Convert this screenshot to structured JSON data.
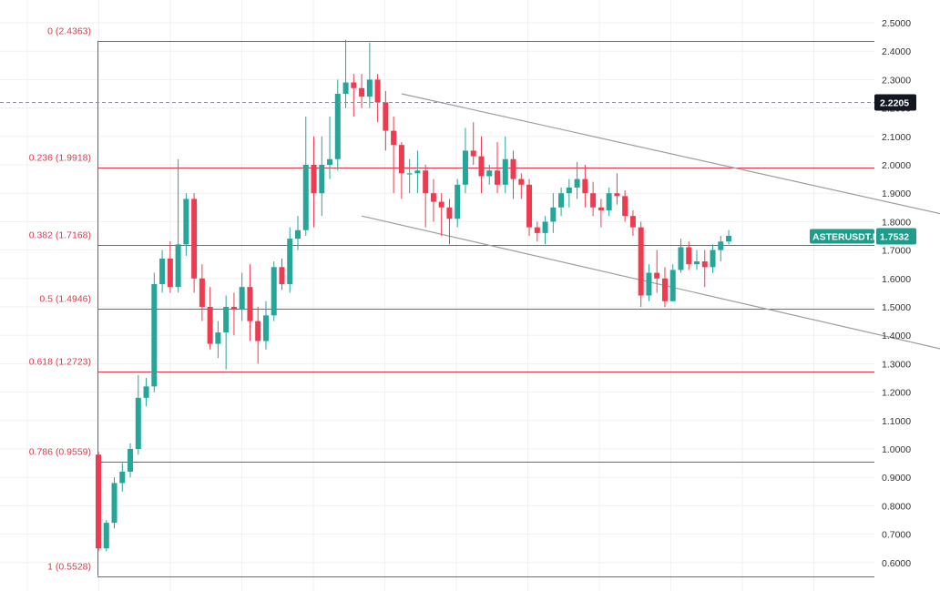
{
  "chart_data": {
    "type": "candlestick",
    "symbol_tag": "ASTERUSDT.P",
    "last_price_label": "1.7532",
    "crosshair_price_label": "2.2205",
    "crosshair_price": 2.2205,
    "ylim": [
      0.55,
      2.53
    ],
    "y_ticks": [
      "2.5000",
      "2.4000",
      "2.3000",
      "2.2000",
      "2.1000",
      "2.0000",
      "1.9000",
      "1.8000",
      "1.7000",
      "1.6000",
      "1.5000",
      "1.4000",
      "1.3000",
      "1.2000",
      "1.1000",
      "1.0000",
      "0.9000",
      "0.8000",
      "0.7000",
      "0.6000"
    ],
    "fib_levels": [
      {
        "label": "0 (2.4363)",
        "price": 2.4363
      },
      {
        "label": "0.236 (1.9918)",
        "price": 1.9918
      },
      {
        "label": "0.382 (1.7168)",
        "price": 1.7168
      },
      {
        "label": "0.5 (1.4946)",
        "price": 1.4946
      },
      {
        "label": "0.618 (1.2723)",
        "price": 1.2723
      },
      {
        "label": "0.786 (0.9559)",
        "price": 0.9559
      },
      {
        "label": "1 (0.5528)",
        "price": 0.5528
      }
    ],
    "trendlines": [
      {
        "from": [
          38,
          2.25
        ],
        "to": [
          110,
          1.8
        ]
      },
      {
        "from": [
          33,
          1.82
        ],
        "to": [
          109,
          1.33
        ]
      }
    ],
    "candles": [
      [
        0.98,
        0.99,
        0.64,
        0.65
      ],
      [
        0.65,
        0.75,
        0.64,
        0.74
      ],
      [
        0.74,
        0.9,
        0.72,
        0.88
      ],
      [
        0.88,
        0.95,
        0.85,
        0.92
      ],
      [
        0.92,
        1.02,
        0.9,
        1.0
      ],
      [
        1.0,
        1.26,
        0.98,
        1.18
      ],
      [
        1.18,
        1.25,
        1.15,
        1.22
      ],
      [
        1.22,
        1.62,
        1.2,
        1.58
      ],
      [
        1.58,
        1.7,
        1.55,
        1.67
      ],
      [
        1.67,
        1.73,
        1.55,
        1.57
      ],
      [
        1.57,
        2.02,
        1.55,
        1.72
      ],
      [
        1.72,
        1.9,
        1.68,
        1.88
      ],
      [
        1.88,
        1.9,
        1.55,
        1.6
      ],
      [
        1.6,
        1.65,
        1.45,
        1.5
      ],
      [
        1.5,
        1.57,
        1.35,
        1.37
      ],
      [
        1.37,
        1.45,
        1.32,
        1.41
      ],
      [
        1.41,
        1.54,
        1.28,
        1.5
      ],
      [
        1.5,
        1.55,
        1.4,
        1.49
      ],
      [
        1.49,
        1.62,
        1.45,
        1.57
      ],
      [
        1.57,
        1.65,
        1.38,
        1.45
      ],
      [
        1.45,
        1.5,
        1.3,
        1.38
      ],
      [
        1.38,
        1.52,
        1.35,
        1.47
      ],
      [
        1.47,
        1.66,
        1.45,
        1.64
      ],
      [
        1.64,
        1.67,
        1.56,
        1.58
      ],
      [
        1.58,
        1.78,
        1.55,
        1.74
      ],
      [
        1.74,
        1.82,
        1.7,
        1.77
      ],
      [
        1.77,
        2.17,
        1.75,
        2.0
      ],
      [
        2.0,
        2.1,
        1.78,
        1.9
      ],
      [
        1.9,
        2.1,
        1.82,
        2.0
      ],
      [
        2.0,
        2.17,
        1.95,
        2.02
      ],
      [
        2.02,
        2.3,
        1.98,
        2.25
      ],
      [
        2.25,
        2.44,
        2.2,
        2.29
      ],
      [
        2.29,
        2.32,
        2.17,
        2.27
      ],
      [
        2.27,
        2.32,
        2.2,
        2.24
      ],
      [
        2.24,
        2.43,
        2.2,
        2.3
      ],
      [
        2.3,
        2.32,
        2.15,
        2.22
      ],
      [
        2.22,
        2.26,
        2.05,
        2.12
      ],
      [
        2.12,
        2.17,
        1.9,
        2.07
      ],
      [
        2.07,
        2.08,
        1.88,
        1.97
      ],
      [
        1.97,
        2.02,
        1.9,
        1.97
      ],
      [
        1.97,
        2.05,
        1.9,
        1.98
      ],
      [
        1.98,
        2.0,
        1.78,
        1.9
      ],
      [
        1.9,
        1.95,
        1.8,
        1.87
      ],
      [
        1.87,
        1.9,
        1.75,
        1.85
      ],
      [
        1.85,
        1.88,
        1.72,
        1.81
      ],
      [
        1.81,
        1.95,
        1.78,
        1.93
      ],
      [
        1.93,
        2.13,
        1.9,
        2.05
      ],
      [
        2.05,
        2.15,
        2.0,
        2.03
      ],
      [
        2.03,
        2.1,
        1.9,
        1.96
      ],
      [
        1.96,
        2.0,
        1.93,
        1.98
      ],
      [
        1.98,
        2.08,
        1.9,
        1.93
      ],
      [
        1.93,
        2.1,
        1.9,
        2.02
      ],
      [
        2.02,
        2.05,
        1.88,
        1.95
      ],
      [
        1.95,
        1.97,
        1.88,
        1.93
      ],
      [
        1.93,
        1.95,
        1.75,
        1.78
      ],
      [
        1.78,
        1.8,
        1.73,
        1.76
      ],
      [
        1.76,
        1.82,
        1.72,
        1.8
      ],
      [
        1.8,
        1.9,
        1.76,
        1.85
      ],
      [
        1.85,
        1.92,
        1.82,
        1.9
      ],
      [
        1.9,
        1.95,
        1.85,
        1.92
      ],
      [
        1.92,
        2.01,
        1.88,
        1.95
      ],
      [
        1.95,
        2.0,
        1.85,
        1.9
      ],
      [
        1.9,
        1.94,
        1.82,
        1.85
      ],
      [
        1.85,
        1.88,
        1.78,
        1.84
      ],
      [
        1.84,
        1.92,
        1.82,
        1.9
      ],
      [
        1.9,
        1.97,
        1.86,
        1.89
      ],
      [
        1.89,
        1.91,
        1.8,
        1.82
      ],
      [
        1.82,
        1.84,
        1.75,
        1.78
      ],
      [
        1.78,
        1.8,
        1.5,
        1.54
      ],
      [
        1.54,
        1.65,
        1.52,
        1.62
      ],
      [
        1.62,
        1.7,
        1.55,
        1.6
      ],
      [
        1.6,
        1.64,
        1.5,
        1.52
      ],
      [
        1.52,
        1.65,
        1.52,
        1.63
      ],
      [
        1.63,
        1.74,
        1.62,
        1.71
      ],
      [
        1.71,
        1.73,
        1.63,
        1.65
      ],
      [
        1.65,
        1.7,
        1.63,
        1.66
      ],
      [
        1.66,
        1.7,
        1.57,
        1.64
      ],
      [
        1.64,
        1.72,
        1.62,
        1.7
      ],
      [
        1.7,
        1.75,
        1.66,
        1.73
      ],
      [
        1.73,
        1.77,
        1.72,
        1.75
      ]
    ],
    "colors": {
      "up": "#26a69a",
      "down": "#ef3b50",
      "fib": "#e0384a",
      "trend": "#9e9e9e",
      "grid": "#f0f1f4",
      "crosshair_tag": "#131722",
      "symbol_tag": "#1e9e8a"
    }
  }
}
